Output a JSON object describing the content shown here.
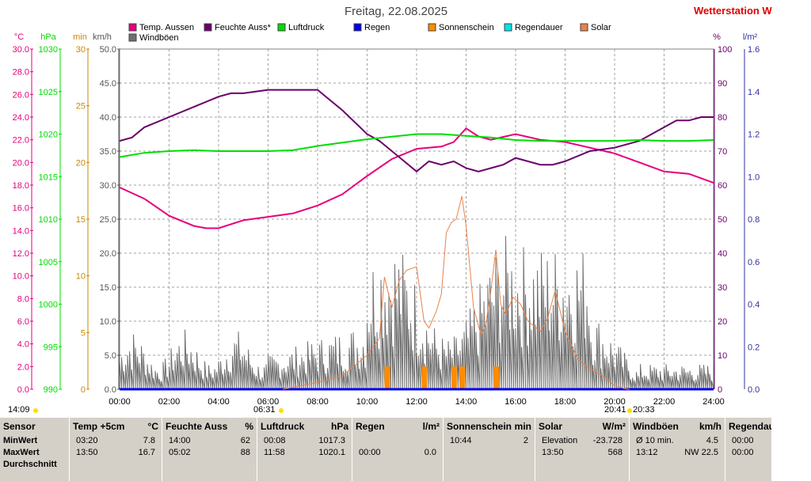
{
  "header": {
    "title": "Freitag, 22.08.2025",
    "station": "Wetterstation W"
  },
  "colors": {
    "temp": "#e6007e",
    "humidity": "#6a006a",
    "pressure": "#00dd00",
    "rain": "#0000ee",
    "sunshine": "#ff8c00",
    "raindur": "#00e5e5",
    "solar": "#e8834a",
    "gust": "#707070",
    "sunshine_axis": "#c88a00"
  },
  "chart_data": {
    "type": "line",
    "x_ticks": [
      "00:00",
      "02:00",
      "04:00",
      "06:00",
      "08:00",
      "10:00",
      "12:00",
      "14:00",
      "16:00",
      "18:00",
      "20:00",
      "22:00",
      "24:00"
    ],
    "x_range_hours": [
      0,
      24
    ],
    "axes": {
      "temp_c": {
        "label": "°C",
        "range": [
          0,
          30
        ],
        "ticks": [
          "0.0",
          "2.0",
          "4.0",
          "6.0",
          "8.0",
          "10.0",
          "12.0",
          "14.0",
          "16.0",
          "18.0",
          "20.0",
          "22.0",
          "24.0",
          "26.0",
          "28.0",
          "30.0"
        ]
      },
      "pressure_hpa": {
        "label": "hPa",
        "range": [
          990,
          1030
        ],
        "ticks": [
          "990",
          "995",
          "1000",
          "1005",
          "1010",
          "1015",
          "1020",
          "1025",
          "1030"
        ]
      },
      "sunshine_min": {
        "label": "min",
        "range": [
          0,
          30
        ],
        "ticks": [
          "0",
          "5",
          "10",
          "15",
          "20",
          "25",
          "30"
        ]
      },
      "wind_kmh": {
        "label": "km/h",
        "range": [
          0,
          50
        ],
        "ticks": [
          "0.0",
          "5.0",
          "10.0",
          "15.0",
          "20.0",
          "25.0",
          "30.0",
          "35.0",
          "40.0",
          "45.0",
          "50.0"
        ]
      },
      "humidity_pct": {
        "label": "%",
        "range": [
          0,
          100
        ],
        "ticks": [
          "0",
          "10",
          "20",
          "30",
          "40",
          "50",
          "60",
          "70",
          "80",
          "90",
          "100"
        ]
      },
      "rain_lm2": {
        "label": "l/m²",
        "range": [
          0,
          1.6
        ],
        "ticks": [
          "0.0",
          "0.2",
          "0.4",
          "0.6",
          "0.8",
          "1.0",
          "1.2",
          "1.4",
          "1.6"
        ]
      }
    },
    "legend": [
      "Temp. Aussen",
      "Feuchte Auss*",
      "Luftdruck",
      "Regen",
      "Sonnenschein",
      "Regendauer",
      "Solar",
      "Windböen"
    ],
    "series": [
      {
        "name": "Temp. Aussen",
        "axis": "temp_c",
        "x": [
          0,
          1,
          2,
          3,
          3.5,
          4,
          5,
          6,
          7,
          8,
          9,
          10,
          11,
          12,
          13,
          13.5,
          14,
          14.5,
          15,
          16,
          17,
          18,
          19,
          20,
          21,
          22,
          23,
          24
        ],
        "y": [
          17.8,
          16.8,
          15.3,
          14.4,
          14.2,
          14.2,
          14.9,
          15.2,
          15.5,
          16.2,
          17.2,
          18.8,
          20.3,
          21.2,
          21.4,
          21.8,
          23.0,
          22.3,
          22.0,
          22.5,
          22.0,
          21.8,
          21.3,
          20.8,
          20.0,
          19.2,
          19.0,
          18.2
        ]
      },
      {
        "name": "Feuchte Auss*",
        "axis": "humidity_pct",
        "x": [
          0,
          0.5,
          1,
          2,
          3,
          4,
          4.5,
          5,
          6,
          7,
          8,
          9,
          10,
          10.5,
          11,
          11.5,
          12,
          12.5,
          13,
          13.5,
          14,
          14.5,
          15,
          15.5,
          16,
          17,
          17.5,
          18,
          19,
          20,
          21,
          22,
          22.5,
          23,
          23.5,
          24
        ],
        "y": [
          73,
          74,
          77,
          80,
          83,
          86,
          87,
          87,
          88,
          88,
          88,
          82,
          75,
          73,
          70,
          67,
          64,
          67,
          66,
          67,
          65,
          64,
          65,
          66,
          68,
          66,
          66,
          67,
          70,
          71,
          73,
          77,
          79,
          79,
          80,
          80
        ]
      },
      {
        "name": "Luftdruck",
        "axis": "pressure_hpa",
        "x": [
          0,
          1,
          2,
          3,
          4,
          5,
          6,
          7,
          8,
          9,
          10,
          11,
          12,
          13,
          14,
          15,
          16,
          17,
          18,
          19,
          20,
          21,
          22,
          23,
          24
        ],
        "y": [
          1017.3,
          1017.8,
          1018.0,
          1018.1,
          1018.0,
          1018.0,
          1018.0,
          1018.1,
          1018.6,
          1019.0,
          1019.4,
          1019.7,
          1020.0,
          1020.0,
          1019.8,
          1019.6,
          1019.3,
          1019.2,
          1019.2,
          1019.2,
          1019.2,
          1019.3,
          1019.2,
          1019.2,
          1019.3
        ]
      },
      {
        "name": "Regen",
        "axis": "rain_lm2",
        "x": [
          0,
          24
        ],
        "y": [
          0.0,
          0.0
        ]
      },
      {
        "name": "Solar",
        "axis": "humidity_pct",
        "axis_scale_wm2_per_unit": 10,
        "x": [
          6.6,
          8,
          9,
          9.5,
          10,
          10.5,
          10.7,
          11,
          11.3,
          11.6,
          12,
          12.3,
          12.5,
          12.8,
          13,
          13.2,
          13.4,
          13.6,
          13.83,
          14,
          14.3,
          14.6,
          14.8,
          15,
          15.2,
          15.4,
          15.6,
          15.9,
          16.2,
          16.5,
          17,
          17.3,
          17.6,
          18,
          18.5,
          19,
          19.5,
          20,
          20.5,
          20.6
        ],
        "y": [
          0,
          20,
          40,
          70,
          100,
          150,
          330,
          240,
          320,
          350,
          360,
          200,
          180,
          230,
          280,
          460,
          490,
          500,
          568,
          480,
          240,
          160,
          190,
          290,
          410,
          250,
          220,
          270,
          250,
          200,
          170,
          210,
          290,
          170,
          90,
          60,
          40,
          10,
          0,
          0
        ]
      }
    ],
    "windgust_range_kmh": [
      0,
      23
    ],
    "sunshine_minutes": [
      {
        "x": 10.8,
        "minutes": 2
      },
      {
        "x": 12.3,
        "minutes": 2
      },
      {
        "x": 13.5,
        "minutes": 2
      },
      {
        "x": 13.83,
        "minutes": 2
      },
      {
        "x": 15.2,
        "minutes": 2
      }
    ],
    "markers": {
      "sunrise": "06:31",
      "sunset": "20:33",
      "sunset_prev": "20:41",
      "bottom_left": "14:09"
    },
    "grid": true
  },
  "stats": {
    "row_labels": [
      "Sensor",
      "MinWert",
      "MaxWert",
      "Durchschnitt"
    ],
    "columns": [
      {
        "name": "Temp +5cm",
        "unit": "°C",
        "min_time": "03:20",
        "min": "7.8",
        "max_time": "13:50",
        "max": "16.7"
      },
      {
        "name": "Feuchte Auss",
        "unit": "%",
        "min_time": "14:00",
        "min": "62",
        "max_time": "05:02",
        "max": "88"
      },
      {
        "name": "Luftdruck",
        "unit": "hPa",
        "min_time": "00:08",
        "min": "1017.3",
        "max_time": "11:58",
        "max": "1020.1"
      },
      {
        "name": "Regen",
        "unit": "l/m²",
        "min_time": "",
        "min": "",
        "max_time": "00:00",
        "max": "0.0"
      },
      {
        "name": "Sonnenschein",
        "unit": "min",
        "min_time": "10:44",
        "min": "2",
        "max_time": "",
        "max": ""
      },
      {
        "name": "Solar",
        "unit": "W/m²",
        "min_time": "Elevation",
        "min": "-23.728",
        "max_time": "13:50",
        "max": "568"
      },
      {
        "name": "Windböen",
        "unit": "km/h",
        "min_time": "Ø 10 min.",
        "min": "4.5",
        "max_time": "13:12",
        "max": "NW 22.5"
      },
      {
        "name": "Regendauer",
        "unit": "",
        "min_time": "00:00",
        "min": "",
        "max_time": "00:00",
        "max": ""
      }
    ]
  }
}
